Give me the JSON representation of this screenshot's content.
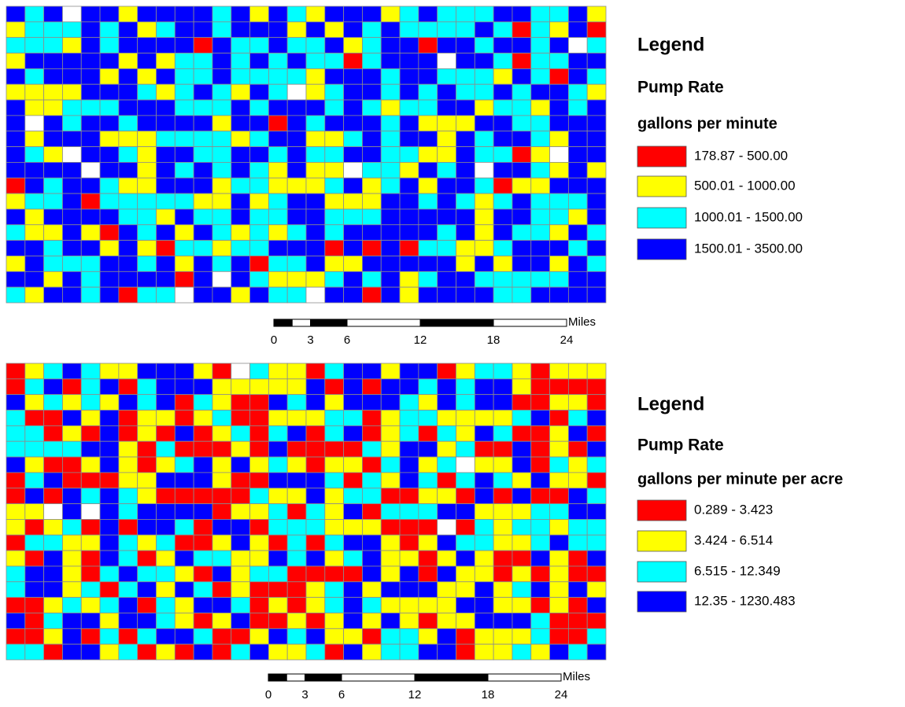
{
  "maps": [
    {
      "legend": {
        "heading": "Legend",
        "title": "Pump Rate",
        "subtitle": "gallons per minute",
        "classes": [
          {
            "label": "178.87 - 500.00",
            "color": "#ff0000"
          },
          {
            "label": "500.01 - 1000.00",
            "color": "#ffff00"
          },
          {
            "label": "1000.01 - 1500.00",
            "color": "#00ffff"
          },
          {
            "label": "1500.01 - 3500.00",
            "color": "#0000ff"
          }
        ]
      },
      "scale_bar": {
        "ticks": [
          0,
          3,
          6,
          12,
          18,
          24
        ],
        "unit": "Miles"
      }
    },
    {
      "legend": {
        "heading": "Legend",
        "title": "Pump Rate",
        "subtitle": "gallons per minute per acre",
        "classes": [
          {
            "label": "0.289 - 3.423",
            "color": "#ff0000"
          },
          {
            "label": "3.424 - 6.514",
            "color": "#ffff00"
          },
          {
            "label": "6.515 - 12.349",
            "color": "#00ffff"
          },
          {
            "label": "12.35 - 1230.483",
            "color": "#0000ff"
          }
        ]
      },
      "scale_bar": {
        "ticks": [
          0,
          3,
          6,
          12,
          18,
          24
        ],
        "unit": "Miles"
      }
    }
  ]
}
